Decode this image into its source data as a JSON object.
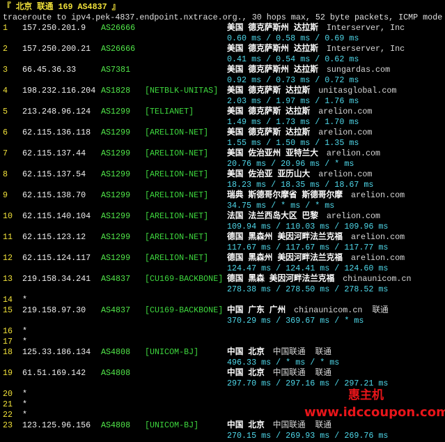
{
  "header": {
    "title": "『 北京 联通 169 AS4837 』",
    "command": "traceroute to ipv4.pek-4837.endpoint.nxtrace.org., 30 hops max, 52 byte packets, ICMP mode"
  },
  "hops": [
    {
      "n": "1",
      "ip": "157.250.201.9",
      "asn": "AS26666",
      "net": "",
      "place": "美国 德克萨斯州 达拉斯",
      "org": "Interserver, Inc",
      "isp": "",
      "lat": "0.60 ms / 0.58 ms / 0.69 ms"
    },
    {
      "n": "2",
      "ip": "157.250.200.21",
      "asn": "AS26666",
      "net": "",
      "place": "美国 德克萨斯州 达拉斯",
      "org": "Interserver, Inc",
      "isp": "",
      "lat": "0.41 ms / 0.54 ms / 0.62 ms"
    },
    {
      "n": "3",
      "ip": "66.45.36.33",
      "asn": "AS7381",
      "net": "",
      "place": "美国 德克萨斯州 达拉斯",
      "org": "sungardas.com",
      "isp": "",
      "lat": "0.92 ms / 0.73 ms / 0.72 ms"
    },
    {
      "n": "4",
      "ip": "198.232.116.204",
      "asn": "AS1828",
      "net": "[NETBLK-UNITAS]",
      "place": "美国 德克萨斯 达拉斯",
      "org": "unitasglobal.com",
      "isp": "",
      "lat": "2.03 ms / 1.97 ms / 1.76 ms"
    },
    {
      "n": "5",
      "ip": "213.248.96.124",
      "asn": "AS1299",
      "net": "[TELIANET]",
      "place": "美国 德克萨斯 达拉斯",
      "org": "arelion.com",
      "isp": "",
      "lat": "1.49 ms / 1.73 ms / 1.70 ms"
    },
    {
      "n": "6",
      "ip": "62.115.136.118",
      "asn": "AS1299",
      "net": "[ARELION-NET]",
      "place": "美国 德克萨斯 达拉斯",
      "org": "arelion.com",
      "isp": "",
      "lat": "1.55 ms / 1.50 ms / 1.35 ms"
    },
    {
      "n": "7",
      "ip": "62.115.137.44",
      "asn": "AS1299",
      "net": "[ARELION-NET]",
      "place": "美国 佐治亚州 亚特兰大",
      "org": "arelion.com",
      "isp": "",
      "lat": "20.76 ms / 20.96 ms / * ms"
    },
    {
      "n": "8",
      "ip": "62.115.137.54",
      "asn": "AS1299",
      "net": "[ARELION-NET]",
      "place": "美国 佐治亚 亚历山大",
      "org": "arelion.com",
      "isp": "",
      "lat": "18.23 ms / 18.35 ms / 18.67 ms"
    },
    {
      "n": "9",
      "ip": "62.115.138.70",
      "asn": "AS1299",
      "net": "[ARELION-NET]",
      "place": "瑞典 斯德哥尔摩省 斯德哥尔摩",
      "org": "arelion.com",
      "isp": "",
      "lat": "34.75 ms / * ms / * ms"
    },
    {
      "n": "10",
      "ip": "62.115.140.104",
      "asn": "AS1299",
      "net": "[ARELION-NET]",
      "place": "法国 法兰西岛大区 巴黎",
      "org": "arelion.com",
      "isp": "",
      "lat": "109.94 ms / 110.03 ms / 109.96 ms"
    },
    {
      "n": "11",
      "ip": "62.115.123.12",
      "asn": "AS1299",
      "net": "[ARELION-NET]",
      "place": "德国 黑森州 美因河畔法兰克福",
      "org": "arelion.com",
      "isp": "",
      "lat": "117.67 ms / 117.67 ms / 117.77 ms"
    },
    {
      "n": "12",
      "ip": "62.115.124.117",
      "asn": "AS1299",
      "net": "[ARELION-NET]",
      "place": "德国 黑森州 美因河畔法兰克福",
      "org": "arelion.com",
      "isp": "",
      "lat": "124.47 ms / 124.41 ms / 124.60 ms"
    },
    {
      "n": "13",
      "ip": "219.158.34.241",
      "asn": "AS4837",
      "net": "[CU169-BACKBONE]",
      "place": "德国 黑森 美因河畔法兰克福",
      "org": "chinaunicom.cn",
      "isp": "",
      "lat": "278.38 ms / 278.50 ms / 278.52 ms"
    },
    {
      "n": "14",
      "ip": "*"
    },
    {
      "n": "15",
      "ip": "219.158.97.30",
      "asn": "AS4837",
      "net": "[CU169-BACKBONE]",
      "place": "中国 广东 广州",
      "org": "chinaunicom.cn",
      "isp": "联通",
      "lat": "370.29 ms / 369.67 ms / * ms"
    },
    {
      "n": "16",
      "ip": "*"
    },
    {
      "n": "17",
      "ip": "*"
    },
    {
      "n": "18",
      "ip": "125.33.186.134",
      "asn": "AS4808",
      "net": "[UNICOM-BJ]",
      "place": "中国 北京",
      "org": "中国联通",
      "isp": "联通",
      "lat": "496.33 ms / * ms / * ms"
    },
    {
      "n": "19",
      "ip": "61.51.169.142",
      "asn": "AS4808",
      "net": "",
      "place": "中国 北京",
      "org": "中国联通",
      "isp": "联通",
      "lat": "297.70 ms / 297.16 ms / 297.21 ms"
    },
    {
      "n": "20",
      "ip": "*"
    },
    {
      "n": "21",
      "ip": "*"
    },
    {
      "n": "22",
      "ip": "*"
    },
    {
      "n": "23",
      "ip": "123.125.96.156",
      "asn": "AS4808",
      "net": "[UNICOM-BJ]",
      "place": "中国 北京",
      "org": "中国联通",
      "isp": "联通",
      "lat": "270.15 ms / 269.93 ms / 269.76 ms"
    }
  ],
  "watermark": {
    "brand": "惠主机",
    "url": "www.idccoupon.com",
    "color": "#e8151a"
  },
  "colors": {
    "hop": "#f2e23a",
    "asn": "#52e84a",
    "latency": "#4fd8ea",
    "background": "#000000"
  }
}
